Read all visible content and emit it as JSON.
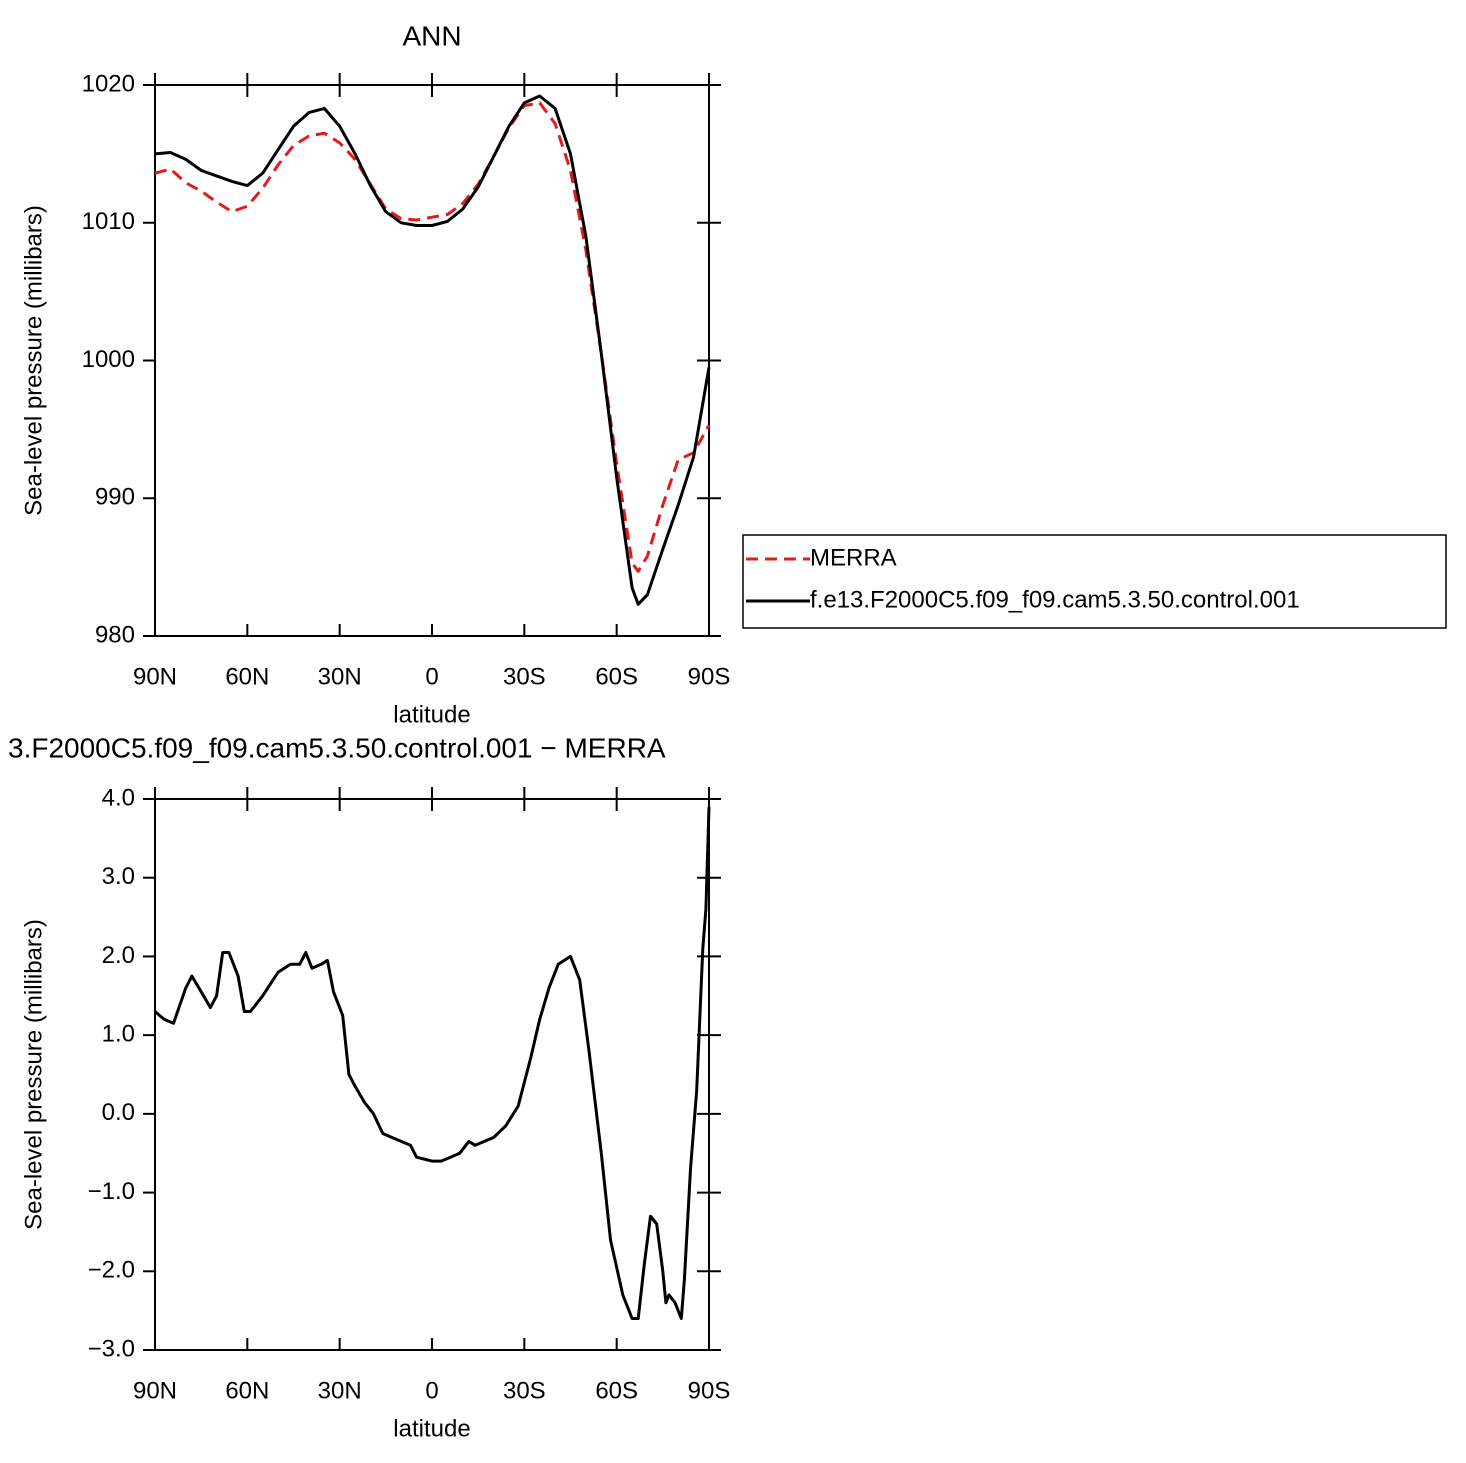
{
  "chart_data": [
    {
      "type": "line",
      "title": "ANN",
      "xlabel": "latitude",
      "ylabel": "Sea-level pressure (millibars)",
      "xlim": [
        90,
        -90
      ],
      "ylim": [
        980,
        1020
      ],
      "xticks": [
        {
          "value": 90,
          "label": "90N"
        },
        {
          "value": 60,
          "label": "60N"
        },
        {
          "value": 30,
          "label": "30N"
        },
        0,
        {
          "value": -30,
          "label": "30S"
        },
        {
          "value": -60,
          "label": "60S"
        },
        {
          "value": -90,
          "label": "90S"
        }
      ],
      "yticks": [
        980,
        990,
        1000,
        1010,
        1020
      ],
      "legend": "right",
      "x": [
        90,
        85,
        80,
        75,
        70,
        65,
        60,
        55,
        50,
        45,
        40,
        35,
        30,
        25,
        20,
        15,
        10,
        5,
        0,
        -5,
        -10,
        -15,
        -20,
        -25,
        -30,
        -35,
        -40,
        -45,
        -50,
        -55,
        -60,
        -65,
        -67,
        -70,
        -75,
        -80,
        -85,
        -90
      ],
      "series": [
        {
          "name": "MERRA",
          "color": "#e41a1c",
          "dash": true,
          "values": [
            1013.6,
            1013.9,
            1012.9,
            1012.3,
            1011.5,
            1010.8,
            1011.2,
            1012.5,
            1014.2,
            1015.6,
            1016.3,
            1016.5,
            1015.8,
            1014.6,
            1012.8,
            1011.0,
            1010.3,
            1010.2,
            1010.4,
            1010.6,
            1011.4,
            1012.8,
            1014.8,
            1016.9,
            1018.5,
            1018.7,
            1017.2,
            1013.8,
            1008.0,
            1000.5,
            992.5,
            985.3,
            984.7,
            985.8,
            989.5,
            992.8,
            993.3,
            995.3
          ]
        },
        {
          "name": "f.e13.F2000C5.f09_f09.cam5.3.50.control.001",
          "color": "#000000",
          "dash": false,
          "values": [
            1015.0,
            1015.1,
            1014.6,
            1013.8,
            1013.4,
            1013.0,
            1012.7,
            1013.6,
            1015.3,
            1017.0,
            1018.0,
            1018.3,
            1017.0,
            1015.0,
            1012.7,
            1010.8,
            1010.0,
            1009.8,
            1009.8,
            1010.1,
            1011.0,
            1012.6,
            1014.8,
            1017.0,
            1018.7,
            1019.2,
            1018.3,
            1015.0,
            1009.0,
            1000.5,
            991.5,
            983.5,
            982.3,
            983.0,
            986.3,
            989.5,
            993.0,
            999.5
          ]
        }
      ]
    },
    {
      "type": "line",
      "title": "3.F2000C5.f09_f09.cam5.3.50.control.001 − MERRA",
      "xlabel": "latitude",
      "ylabel": "Sea-level pressure (millibars)",
      "xlim": [
        90,
        -90
      ],
      "ylim": [
        -3,
        4
      ],
      "xticks": [
        {
          "value": 90,
          "label": "90N"
        },
        {
          "value": 60,
          "label": "60N"
        },
        {
          "value": 30,
          "label": "30N"
        },
        0,
        {
          "value": -30,
          "label": "30S"
        },
        {
          "value": -60,
          "label": "60S"
        },
        {
          "value": -90,
          "label": "90S"
        }
      ],
      "yticks": [
        {
          "value": -3,
          "label": "−3.0"
        },
        {
          "value": -2,
          "label": "−2.0"
        },
        {
          "value": -1,
          "label": "−1.0"
        },
        {
          "value": 0,
          "label": "0.0"
        },
        {
          "value": 1,
          "label": "1.0"
        },
        {
          "value": 2,
          "label": "2.0"
        },
        {
          "value": 3,
          "label": "3.0"
        },
        {
          "value": 4,
          "label": "4.0"
        }
      ],
      "x": [
        90,
        87,
        84,
        80,
        78,
        75,
        72,
        70,
        68,
        66,
        63,
        61,
        59,
        55,
        50,
        46,
        43,
        41,
        39,
        36,
        34,
        32,
        29,
        27,
        25,
        22,
        19,
        16,
        13,
        10,
        7,
        5,
        2,
        0,
        -3,
        -6,
        -9,
        -12,
        -14,
        -17,
        -20,
        -24,
        -28,
        -32,
        -35,
        -38,
        -41,
        -45,
        -48,
        -51,
        -55,
        -58,
        -62,
        -65,
        -67,
        -69,
        -71,
        -73,
        -75,
        -76,
        -77,
        -79,
        -81,
        -82,
        -84,
        -86,
        -88,
        -89,
        -90
      ],
      "series": [
        {
          "color": "#000000",
          "dash": false,
          "values": [
            1.3,
            1.2,
            1.15,
            1.6,
            1.75,
            1.55,
            1.35,
            1.5,
            2.05,
            2.05,
            1.75,
            1.3,
            1.3,
            1.5,
            1.8,
            1.9,
            1.9,
            2.05,
            1.85,
            1.9,
            1.95,
            1.55,
            1.25,
            0.5,
            0.35,
            0.15,
            0.0,
            -0.25,
            -0.3,
            -0.35,
            -0.4,
            -0.55,
            -0.58,
            -0.6,
            -0.6,
            -0.55,
            -0.5,
            -0.35,
            -0.4,
            -0.35,
            -0.3,
            -0.15,
            0.1,
            0.7,
            1.2,
            1.6,
            1.9,
            2.0,
            1.7,
            0.8,
            -0.5,
            -1.6,
            -2.3,
            -2.6,
            -2.6,
            -1.9,
            -1.3,
            -1.4,
            -2.0,
            -2.4,
            -2.3,
            -2.4,
            -2.6,
            -2.1,
            -0.7,
            0.3,
            2.1,
            2.6,
            3.9
          ]
        }
      ]
    }
  ]
}
